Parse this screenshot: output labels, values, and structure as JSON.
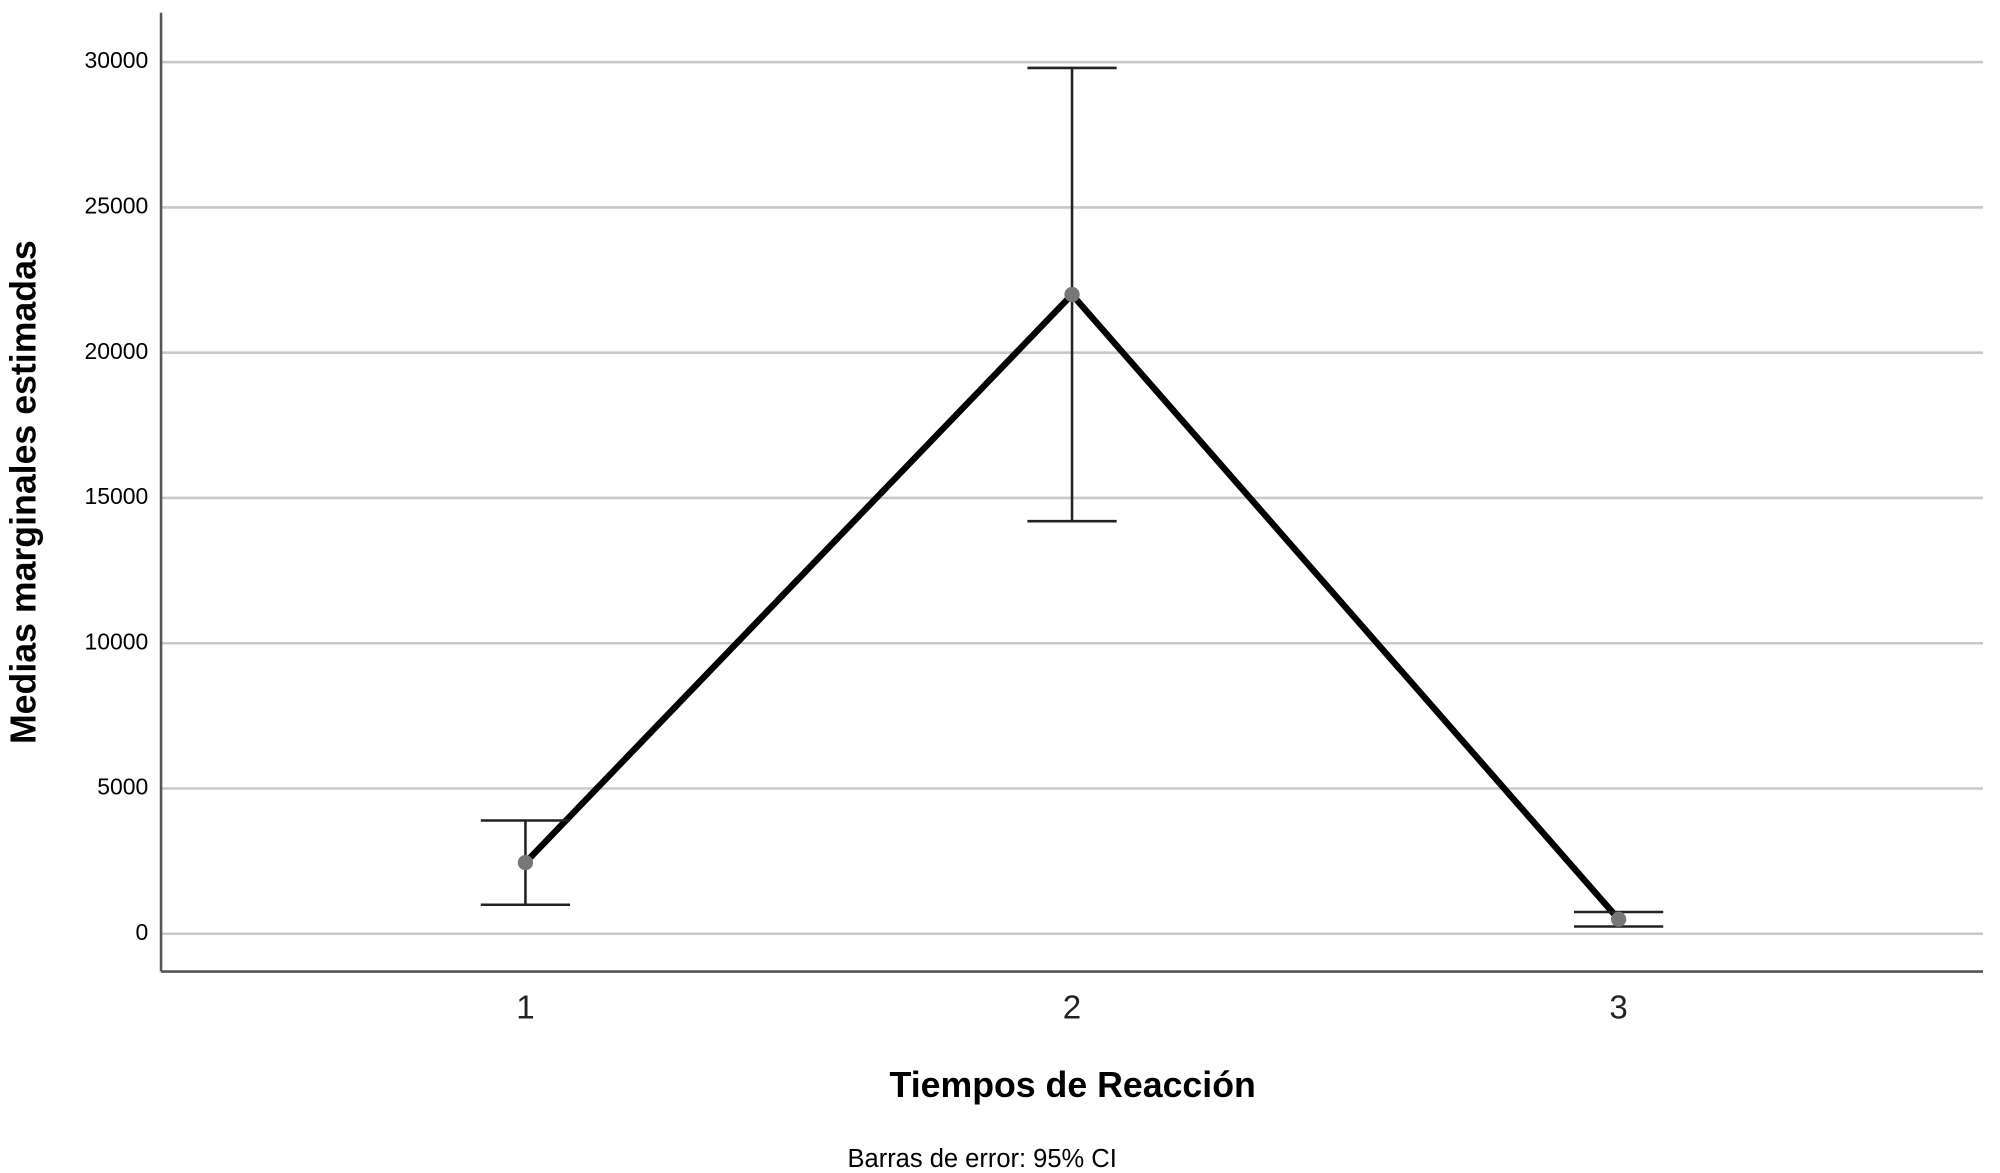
{
  "chart_data": {
    "type": "line",
    "x_label": "Tiempos de Reacción",
    "y_label": "Medias marginales estimadas",
    "note": "Barras de error: 95% CI",
    "categories": [
      "1",
      "2",
      "3"
    ],
    "series": [
      {
        "color": "#000000",
        "values": [
          2450,
          22000,
          500
        ],
        "ci_low": [
          1000,
          14200,
          250
        ],
        "ci_high": [
          3900,
          29800,
          750
        ]
      }
    ],
    "ylim": [
      -1300,
      31700
    ],
    "yticks": [
      0,
      5000,
      10000,
      15000,
      20000,
      25000,
      30000
    ],
    "grid": true
  }
}
